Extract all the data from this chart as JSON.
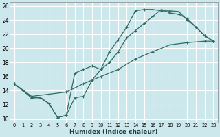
{
  "xlabel": "Humidex (Indice chaleur)",
  "bg_color": "#cce8ed",
  "grid_color": "#ffffff",
  "line_color": "#2e6b63",
  "xlim": [
    -0.5,
    23.5
  ],
  "ylim": [
    9.5,
    26.5
  ],
  "xticks": [
    0,
    1,
    2,
    3,
    4,
    5,
    6,
    7,
    8,
    9,
    10,
    11,
    12,
    13,
    14,
    15,
    16,
    17,
    18,
    19,
    20,
    21,
    22,
    23
  ],
  "yticks": [
    10,
    12,
    14,
    16,
    18,
    20,
    22,
    24,
    26
  ],
  "line1_x": [
    0,
    1,
    2,
    3,
    4,
    5,
    6,
    7,
    8,
    9,
    10,
    11,
    12,
    13,
    14,
    15,
    16,
    17,
    18,
    19,
    20,
    21,
    22,
    23
  ],
  "line1_y": [
    15,
    14,
    13,
    13,
    12.2,
    10.2,
    10.5,
    13.0,
    13.2,
    15.5,
    17.0,
    19.5,
    21.2,
    23.0,
    25.3,
    25.5,
    25.5,
    25.3,
    25.3,
    25.2,
    24.0,
    23.0,
    21.8,
    21.0
  ],
  "line2_x": [
    0,
    2,
    3,
    4,
    5,
    6,
    7,
    8,
    9,
    10,
    11,
    12,
    13,
    14,
    15,
    16,
    17,
    18,
    19,
    20,
    21,
    22,
    23
  ],
  "line2_y": [
    15,
    13,
    13,
    12.2,
    10.2,
    10.5,
    16.5,
    17.0,
    17.5,
    17.0,
    18.0,
    19.5,
    21.5,
    22.5,
    23.5,
    24.5,
    25.5,
    25.0,
    24.8,
    24.2,
    23.0,
    21.8,
    21.0
  ],
  "line3_x": [
    0,
    2,
    4,
    6,
    8,
    10,
    12,
    14,
    16,
    18,
    20,
    22,
    23
  ],
  "line3_y": [
    15,
    13.2,
    13.5,
    13.8,
    15.0,
    16.0,
    17.0,
    18.5,
    19.5,
    20.5,
    20.8,
    21.0,
    21.0
  ]
}
